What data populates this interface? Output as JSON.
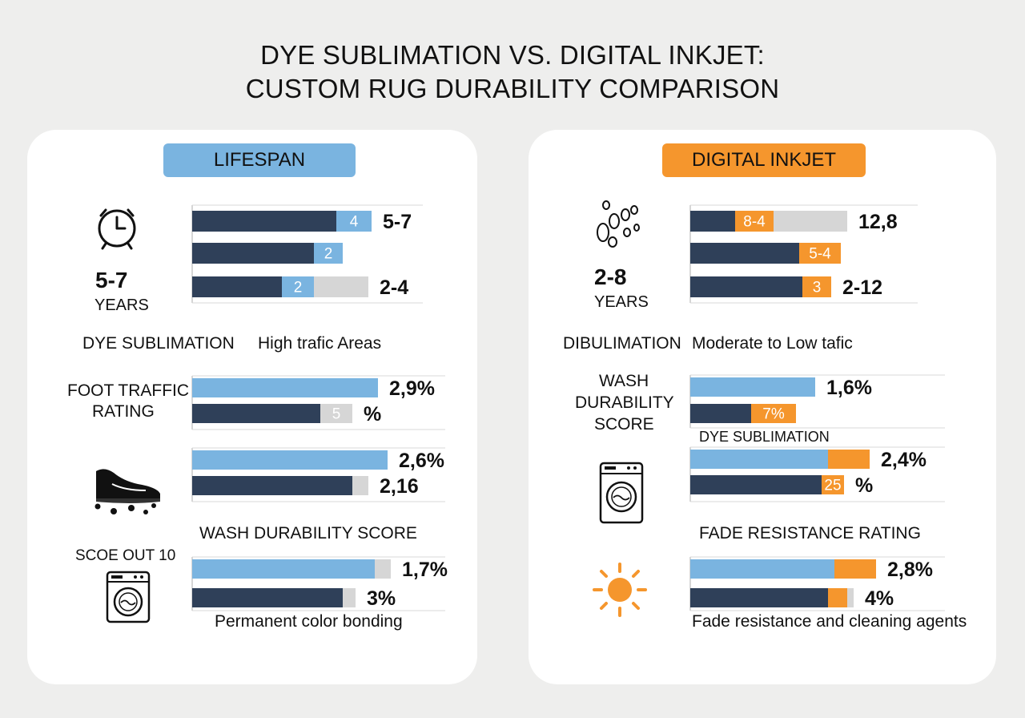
{
  "title": {
    "line1": "DYE SUBLIMATION VS. DIGITAL INKJET:",
    "line2": "CUSTOM RUG DURABILITY COMPARISON"
  },
  "colors": {
    "navy": "#2f4059",
    "light_blue": "#7ab4e0",
    "orange": "#f5962d",
    "gray": "#d6d6d6",
    "pill_blue": "#7ab4e0",
    "pill_orange": "#f5962d"
  },
  "icons": {
    "left": [
      "alarm-clock-icon",
      "sneaker-icon",
      "washing-machine-icon"
    ],
    "right": [
      "footprints-icon",
      "washing-machine-icon",
      "sun-icon"
    ]
  },
  "left": {
    "header": "LIFESPAN",
    "lifespan_value": "5-7",
    "lifespan_unit": "YEARS",
    "col_label": "DYE SUBLIMATION",
    "col_sub": "High trafic Areas",
    "foot_label_1": "FOOT TRAFFIC",
    "foot_label_2": "RATING",
    "wash_title": "WASH DURABILITY SCORE",
    "score_label": "SCOE OUT 10",
    "caption": "Permanent color bonding"
  },
  "right": {
    "header": "DIGITAL INKJET",
    "lifespan_value": "2-8",
    "lifespan_unit": "YEARS",
    "col_label": "DIBULIMATION",
    "col_sub": "Moderate to Low tafic",
    "wash_label_1": "WASH",
    "wash_label_2": "DURABILITY",
    "wash_label_3": "SCORE",
    "dye_sub_label": "DYE SUBLIMATION",
    "fade_title": "FADE RESISTANCE RATING",
    "caption": "Fade resistance and cleaning agents"
  },
  "chart_data": [
    {
      "type": "bar",
      "id": "left-lifespan",
      "bars": [
        {
          "segments": [
            {
              "color": "navy",
              "value": 45
            },
            {
              "color": "light_blue",
              "value": 11,
              "label": "4"
            }
          ],
          "end_label": "5-7"
        },
        {
          "segments": [
            {
              "color": "navy",
              "value": 38
            },
            {
              "color": "light_blue",
              "value": 9,
              "label": "2"
            }
          ]
        },
        {
          "segments": [
            {
              "color": "navy",
              "value": 28
            },
            {
              "color": "light_blue",
              "value": 10,
              "label": "2"
            },
            {
              "color": "gray",
              "value": 17
            }
          ],
          "end_label": "2-4"
        }
      ]
    },
    {
      "type": "bar",
      "id": "left-foot-traffic",
      "bars": [
        {
          "segments": [
            {
              "color": "light_blue",
              "value": 58
            }
          ],
          "end_label": "2,9%"
        },
        {
          "segments": [
            {
              "color": "navy",
              "value": 40
            },
            {
              "color": "gray",
              "value": 10,
              "label": "5"
            }
          ],
          "end_label": "%"
        }
      ]
    },
    {
      "type": "bar",
      "id": "left-sneaker",
      "bars": [
        {
          "segments": [
            {
              "color": "light_blue",
              "value": 61
            }
          ],
          "end_label": "2,6%"
        },
        {
          "segments": [
            {
              "color": "navy",
              "value": 50
            },
            {
              "color": "gray",
              "value": 5
            }
          ],
          "end_label": "2,16"
        }
      ]
    },
    {
      "type": "bar",
      "id": "left-wash",
      "bars": [
        {
          "segments": [
            {
              "color": "light_blue",
              "value": 57
            },
            {
              "color": "gray",
              "value": 5
            }
          ],
          "end_label": "1,7%"
        },
        {
          "segments": [
            {
              "color": "navy",
              "value": 47
            },
            {
              "color": "gray",
              "value": 4
            }
          ],
          "end_label": "3%"
        }
      ]
    },
    {
      "type": "bar",
      "id": "right-lifespan",
      "bars": [
        {
          "segments": [
            {
              "color": "navy",
              "value": 14
            },
            {
              "color": "orange",
              "value": 12,
              "label": "8-4"
            },
            {
              "color": "gray",
              "value": 23
            }
          ],
          "end_label": "12,8"
        },
        {
          "segments": [
            {
              "color": "navy",
              "value": 34
            },
            {
              "color": "orange",
              "value": 13,
              "label": "5-4"
            }
          ]
        },
        {
          "segments": [
            {
              "color": "navy",
              "value": 35
            },
            {
              "color": "orange",
              "value": 9,
              "label": "3"
            }
          ],
          "end_label": "2-12"
        }
      ]
    },
    {
      "type": "bar",
      "id": "right-wash",
      "bars": [
        {
          "segments": [
            {
              "color": "light_blue",
              "value": 39
            }
          ],
          "end_label": "1,6%"
        },
        {
          "segments": [
            {
              "color": "navy",
              "value": 19
            },
            {
              "color": "orange",
              "value": 14,
              "label": "7%"
            }
          ]
        }
      ]
    },
    {
      "type": "bar",
      "id": "right-dye",
      "bars": [
        {
          "segments": [
            {
              "color": "light_blue",
              "value": 43
            },
            {
              "color": "orange",
              "value": 13
            }
          ],
          "end_label": "2,4%"
        },
        {
          "segments": [
            {
              "color": "navy",
              "value": 41
            },
            {
              "color": "orange",
              "value": 7,
              "label": "25"
            }
          ],
          "end_label": "%"
        }
      ]
    },
    {
      "type": "bar",
      "id": "right-fade",
      "bars": [
        {
          "segments": [
            {
              "color": "light_blue",
              "value": 45
            },
            {
              "color": "orange",
              "value": 13
            }
          ],
          "end_label": "2,8%"
        },
        {
          "segments": [
            {
              "color": "navy",
              "value": 43
            },
            {
              "color": "orange",
              "value": 6
            },
            {
              "color": "gray",
              "value": 2
            }
          ],
          "end_label": "4%"
        }
      ]
    }
  ]
}
